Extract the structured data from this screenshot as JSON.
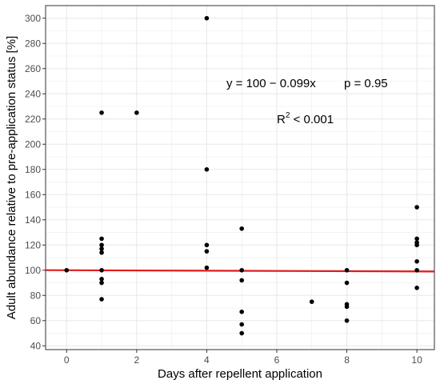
{
  "chart_data": {
    "type": "scatter",
    "xlabel": "Days after repellent application",
    "ylabel": "Adult abundance relative to pre-application status [%]",
    "xlim": [
      -0.6,
      10.5
    ],
    "ylim": [
      37,
      310
    ],
    "x_ticks": [
      0,
      2,
      4,
      6,
      8,
      10
    ],
    "y_ticks": [
      40,
      60,
      80,
      100,
      120,
      140,
      160,
      180,
      200,
      220,
      240,
      260,
      280,
      300
    ],
    "grid": true,
    "points": [
      {
        "x": 0,
        "y": 100
      },
      {
        "x": 1,
        "y": 225
      },
      {
        "x": 1,
        "y": 125
      },
      {
        "x": 1,
        "y": 120
      },
      {
        "x": 1,
        "y": 117
      },
      {
        "x": 1,
        "y": 114
      },
      {
        "x": 1,
        "y": 100
      },
      {
        "x": 1,
        "y": 93
      },
      {
        "x": 1,
        "y": 90
      },
      {
        "x": 1,
        "y": 77
      },
      {
        "x": 2,
        "y": 225
      },
      {
        "x": 4,
        "y": 300
      },
      {
        "x": 4,
        "y": 180
      },
      {
        "x": 4,
        "y": 120
      },
      {
        "x": 4,
        "y": 115
      },
      {
        "x": 4,
        "y": 102
      },
      {
        "x": 5,
        "y": 133
      },
      {
        "x": 5,
        "y": 100
      },
      {
        "x": 5,
        "y": 92
      },
      {
        "x": 5,
        "y": 67
      },
      {
        "x": 5,
        "y": 57
      },
      {
        "x": 5,
        "y": 50
      },
      {
        "x": 7,
        "y": 75
      },
      {
        "x": 8,
        "y": 100
      },
      {
        "x": 8,
        "y": 90
      },
      {
        "x": 8,
        "y": 73
      },
      {
        "x": 8,
        "y": 71
      },
      {
        "x": 8,
        "y": 60
      },
      {
        "x": 10,
        "y": 150
      },
      {
        "x": 10,
        "y": 125
      },
      {
        "x": 10,
        "y": 122
      },
      {
        "x": 10,
        "y": 120
      },
      {
        "x": 10,
        "y": 107
      },
      {
        "x": 10,
        "y": 100
      },
      {
        "x": 10,
        "y": 86
      }
    ],
    "regression": {
      "intercept": 100,
      "slope": -0.099,
      "color": "#e31a1c"
    },
    "annotations": {
      "equation": "y = 100 − 0.099x",
      "p_value": "p = 0.95",
      "r2_label": "R",
      "r2_sup": "2",
      "r2_value": " < 0.001"
    },
    "colors": {
      "points": "#000000",
      "panel": "#ffffff",
      "grid": "#ebebeb"
    }
  }
}
